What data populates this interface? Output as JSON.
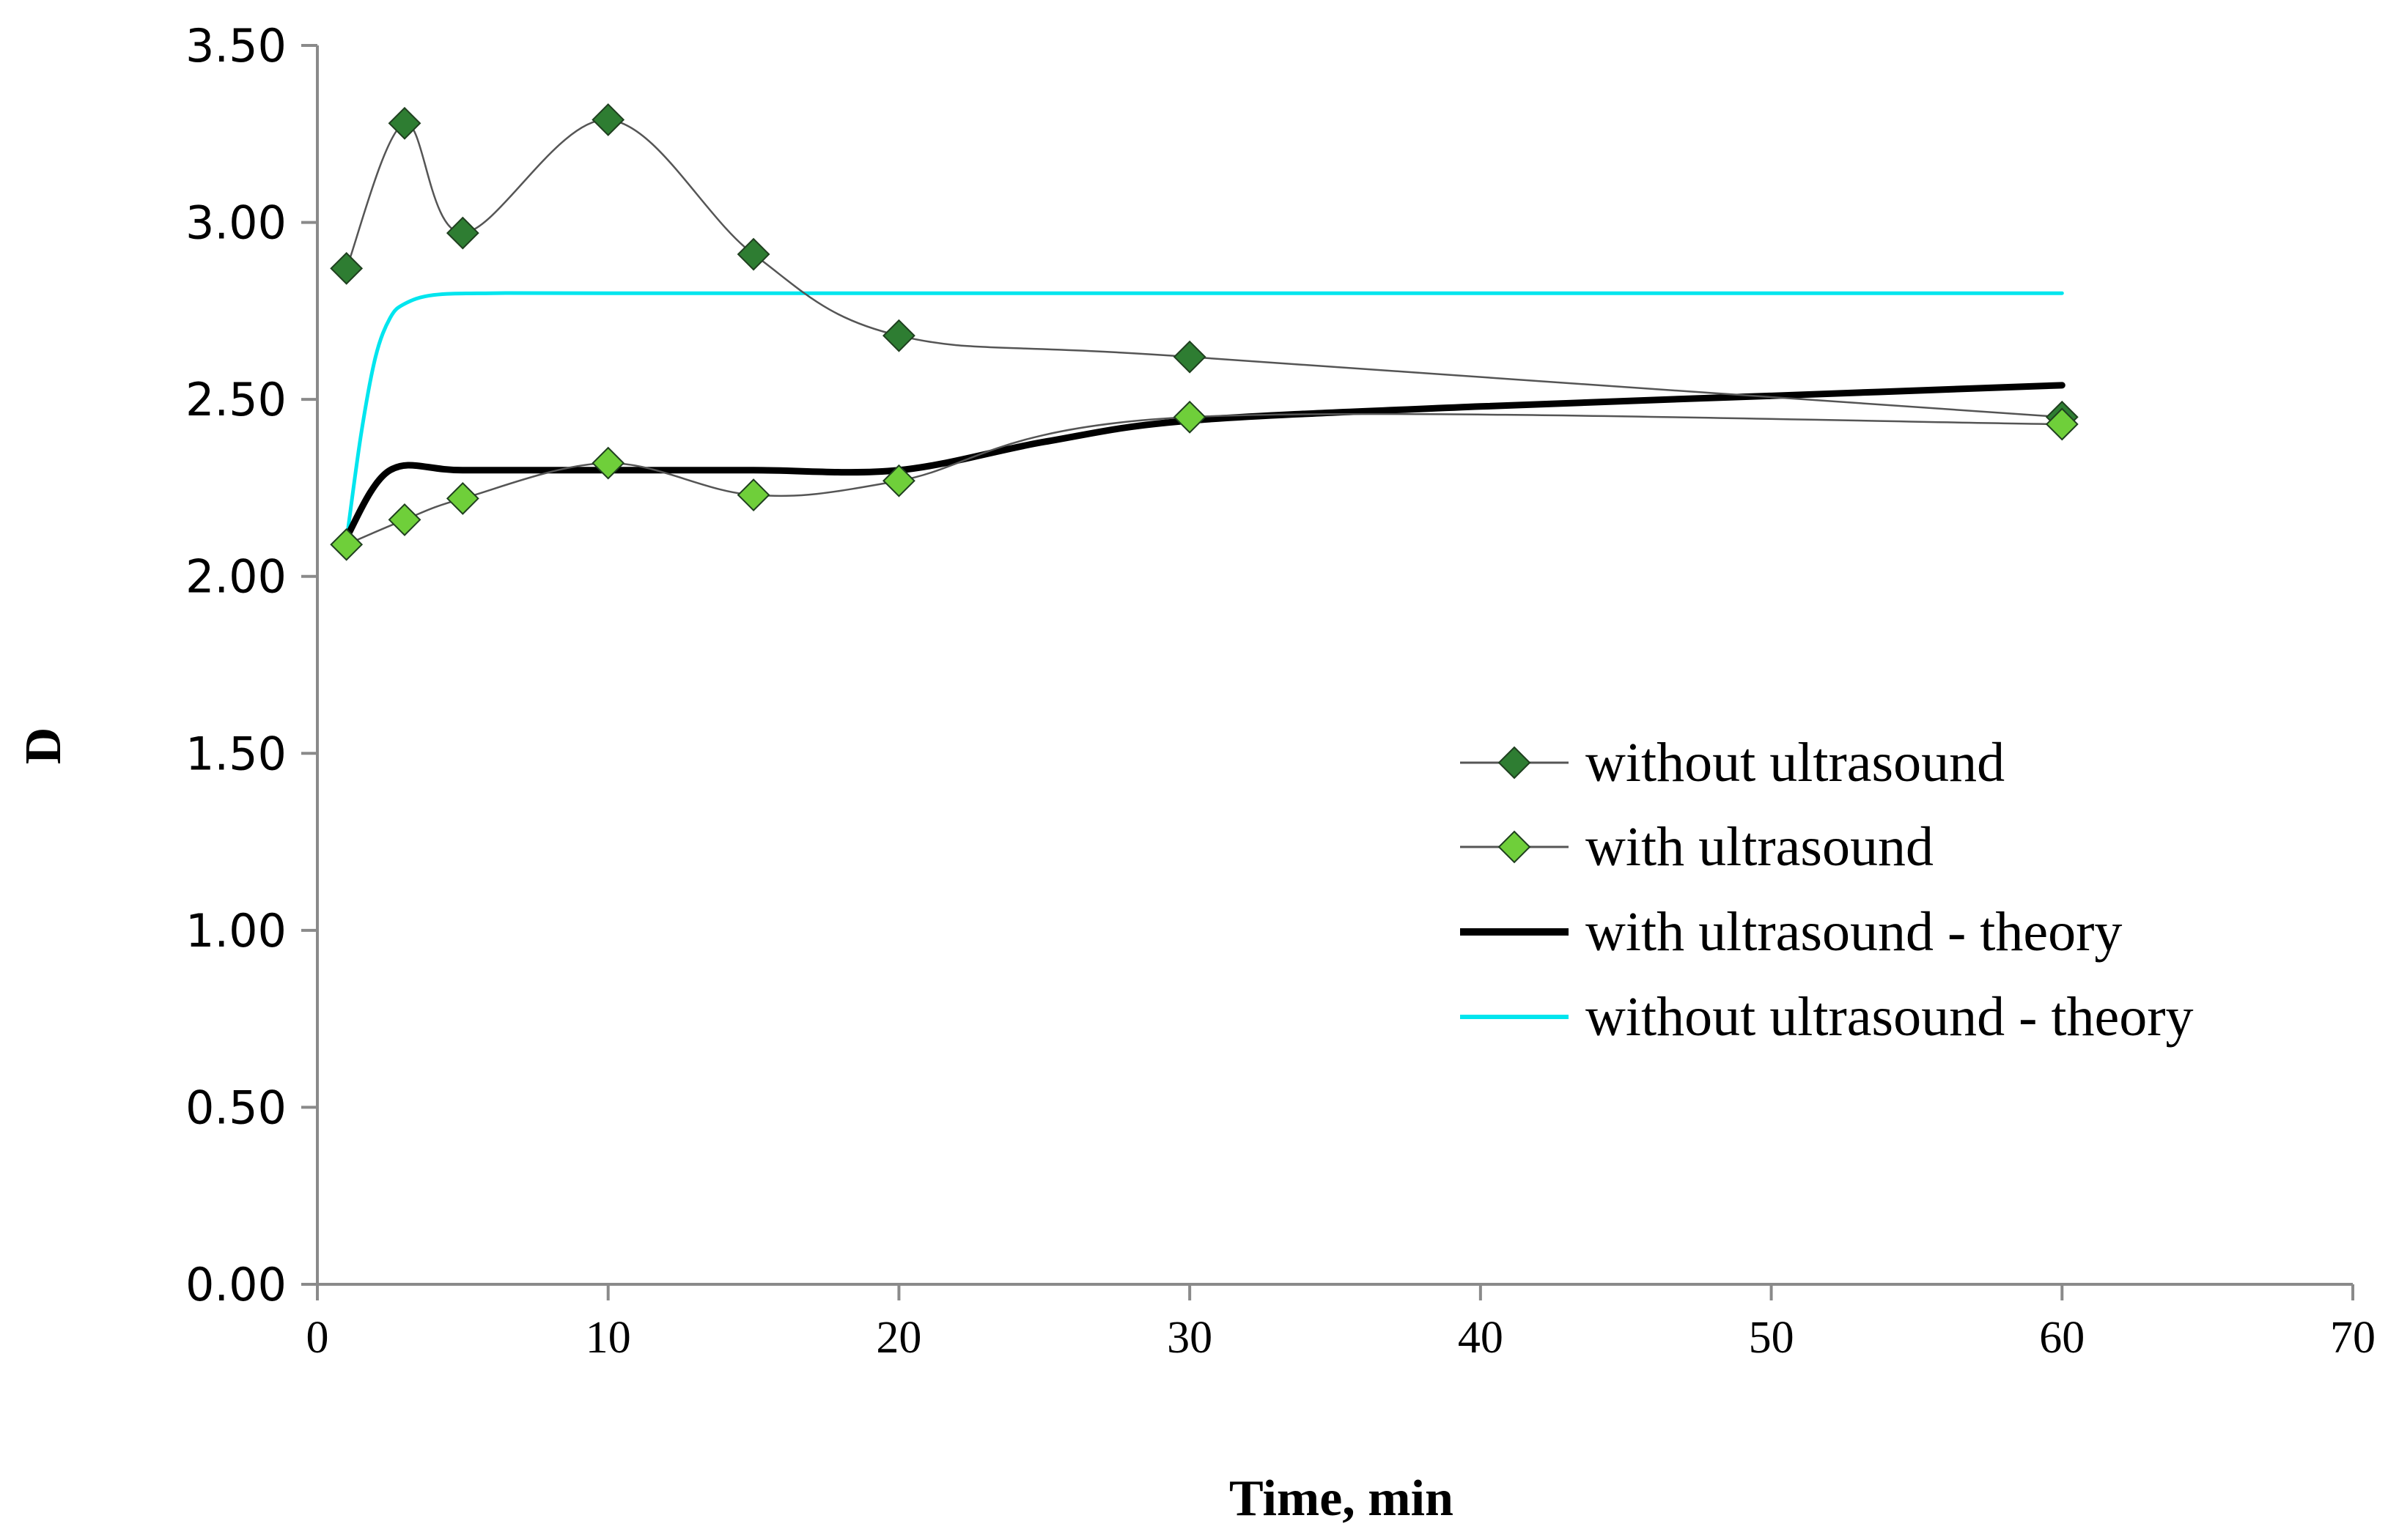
{
  "chart_data": {
    "type": "line",
    "title": "",
    "xlabel": "Time, min",
    "ylabel": "D",
    "xlim": [
      0,
      70
    ],
    "ylim": [
      0,
      3.5
    ],
    "x_ticks": [
      0,
      10,
      20,
      30,
      40,
      50,
      60,
      70
    ],
    "x_tick_labels": [
      "0",
      "10",
      "20",
      "30",
      "40",
      "50",
      "60",
      "70"
    ],
    "y_ticks": [
      0,
      0.5,
      1.0,
      1.5,
      2.0,
      2.5,
      3.0,
      3.5
    ],
    "y_tick_labels": [
      "0.00",
      "0.50",
      "1.00",
      "1.50",
      "2.00",
      "2.50",
      "3.00",
      "3.50"
    ],
    "grid": false,
    "legend_position": "center-right",
    "series": [
      {
        "name": "without ultrasound",
        "style": "smooth-marker",
        "marker": "diamond",
        "line_color": "#555555",
        "marker_fill": "#2e7d32",
        "x": [
          1,
          3,
          5,
          10,
          15,
          20,
          30,
          60
        ],
        "y": [
          2.87,
          3.28,
          2.97,
          3.29,
          2.91,
          2.68,
          2.62,
          2.45
        ]
      },
      {
        "name": "with ultrasound",
        "style": "smooth-marker",
        "marker": "diamond",
        "line_color": "#555555",
        "marker_fill": "#6fcf3a",
        "x": [
          1,
          3,
          5,
          10,
          15,
          20,
          30,
          60
        ],
        "y": [
          2.09,
          2.16,
          2.22,
          2.32,
          2.23,
          2.27,
          2.45,
          2.43
        ]
      },
      {
        "name": "with ultrasound - theory",
        "style": "smooth-line",
        "line_color": "#000000",
        "x": [
          1,
          2.5,
          5,
          10,
          15,
          20,
          25,
          30,
          40,
          50,
          60
        ],
        "y": [
          2.11,
          2.3,
          2.3,
          2.3,
          2.3,
          2.3,
          2.38,
          2.44,
          2.48,
          2.51,
          2.54
        ]
      },
      {
        "name": "without ultrasound - theory",
        "style": "smooth-line",
        "line_color": "#00e5ee",
        "x": [
          1,
          1.5,
          2,
          2.5,
          3,
          4,
          6,
          10,
          20,
          40,
          60
        ],
        "y": [
          2.1,
          2.4,
          2.62,
          2.73,
          2.77,
          2.795,
          2.8,
          2.8,
          2.8,
          2.8,
          2.8
        ]
      }
    ]
  }
}
